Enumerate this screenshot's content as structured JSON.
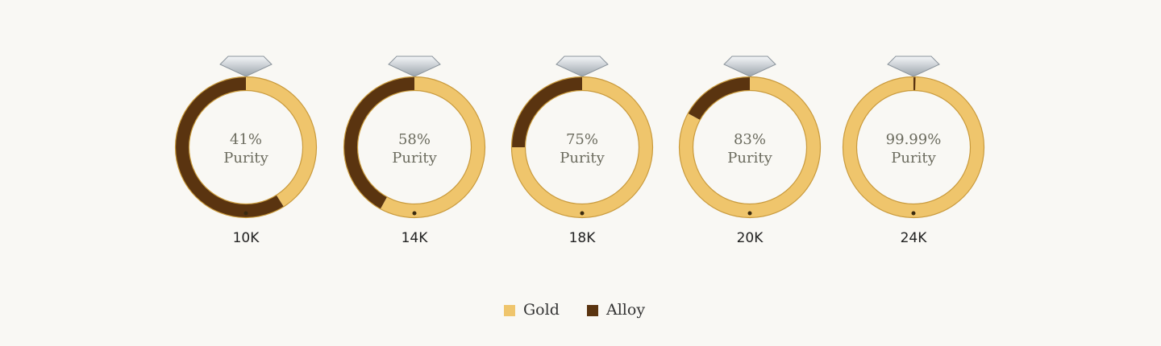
{
  "chart_data": {
    "type": "donut",
    "categories": [
      "10K",
      "14K",
      "18K",
      "20K",
      "24K"
    ],
    "center_label": "Purity",
    "series": [
      {
        "name": "Gold",
        "color": "#efc56c",
        "values": [
          41,
          58,
          75,
          83,
          99.99
        ],
        "value_labels": [
          "41%",
          "58%",
          "75%",
          "83%",
          "99.99%"
        ]
      },
      {
        "name": "Alloy",
        "color": "#5a3410",
        "values": [
          59,
          42,
          25,
          17,
          0.01
        ]
      }
    ],
    "legend": "bottom"
  }
}
